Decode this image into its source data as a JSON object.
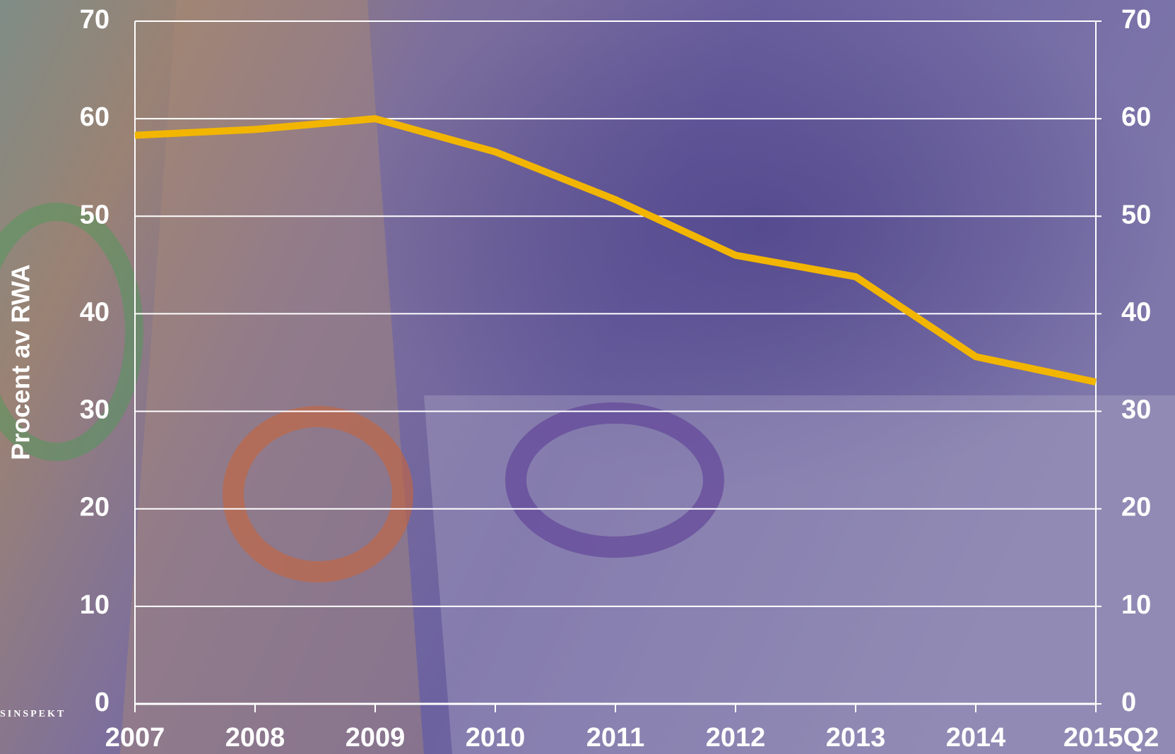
{
  "chart_data": {
    "type": "line",
    "y_label": "Procent av RWA",
    "logo_text": "SINSPEKT",
    "categories": [
      "2007",
      "2008",
      "2009",
      "2010",
      "2011",
      "2012",
      "2013",
      "2014",
      "2015Q2"
    ],
    "series": [
      {
        "color": "#f2b500",
        "values": [
          58.3,
          58.9,
          60.0,
          56.6,
          51.7,
          46.0,
          43.8,
          35.6,
          33.0
        ]
      }
    ],
    "ylim": [
      0,
      70
    ],
    "yticks": [
      0,
      10,
      20,
      30,
      40,
      50,
      60,
      70
    ],
    "y2lim": [
      0,
      70
    ],
    "y2ticks": [
      0,
      10,
      20,
      30,
      40,
      50,
      60,
      70
    ],
    "grid": true
  }
}
